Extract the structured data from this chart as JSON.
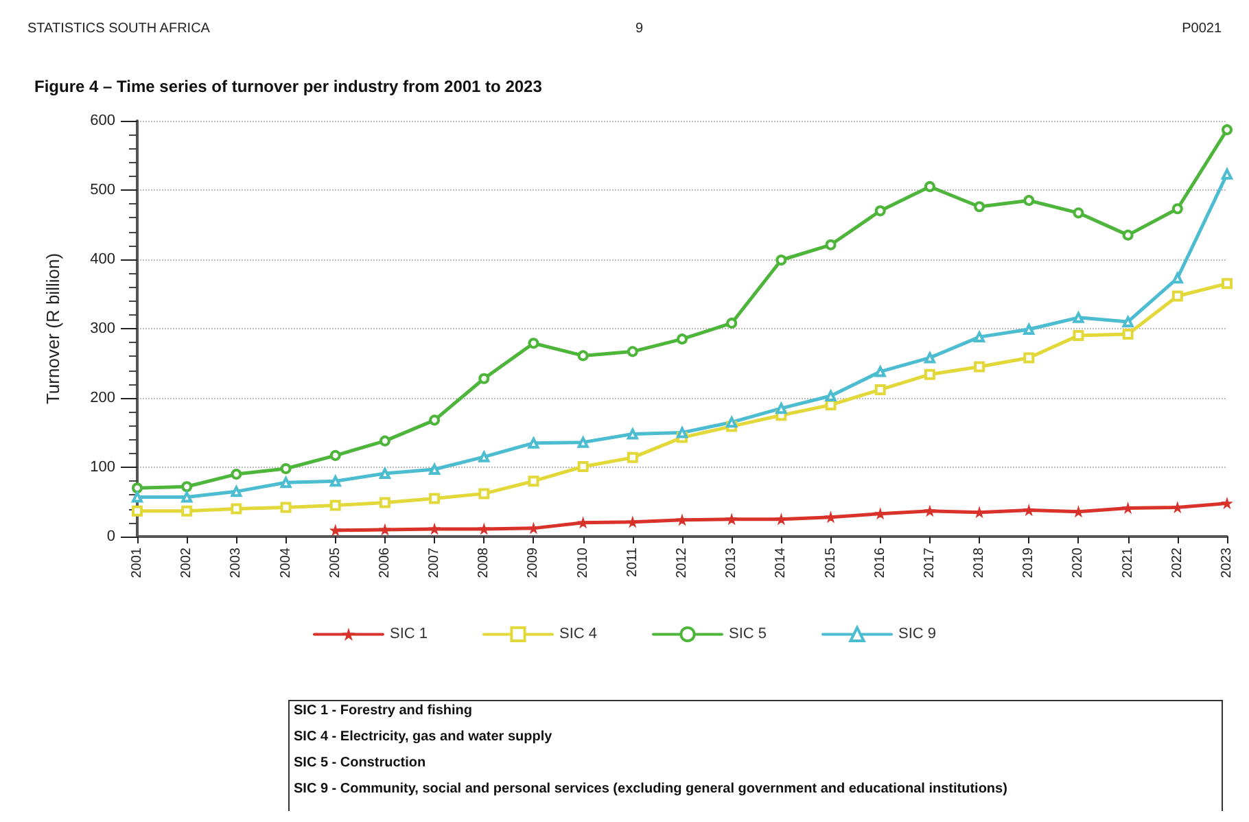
{
  "chart_data": {
    "type": "line",
    "title": "Figure 4 – Time series of turnover per industry from 2001 to 2023",
    "ylabel": "Turnover (R billion)",
    "categories": [
      "2001",
      "2002",
      "2003",
      "2004",
      "2005",
      "2006",
      "2007",
      "2008",
      "2009",
      "2010",
      "2011",
      "2012",
      "2013",
      "2014",
      "2015",
      "2016",
      "2017",
      "2018",
      "2019",
      "2020",
      "2021",
      "2022",
      "2023"
    ],
    "series": [
      {
        "name": "SIC 1",
        "color": "#d8322a",
        "marker": "star",
        "values": [
          null,
          null,
          null,
          null,
          9,
          10,
          11,
          11,
          12,
          20,
          21,
          24,
          25,
          25,
          28,
          33,
          37,
          35,
          38,
          36,
          41,
          42,
          48
        ]
      },
      {
        "name": "SIC 4",
        "color": "#e3d83a",
        "marker": "square",
        "values": [
          37,
          37,
          40,
          42,
          45,
          49,
          55,
          62,
          80,
          101,
          114,
          143,
          159,
          175,
          190,
          212,
          234,
          245,
          258,
          290,
          292,
          347,
          365
        ]
      },
      {
        "name": "SIC 5",
        "color": "#4cb53a",
        "marker": "circle",
        "values": [
          70,
          72,
          90,
          98,
          117,
          138,
          168,
          228,
          279,
          261,
          267,
          285,
          308,
          399,
          421,
          470,
          505,
          476,
          485,
          467,
          435,
          473,
          587
        ]
      },
      {
        "name": "SIC 9",
        "color": "#4cbcd0",
        "marker": "triangle",
        "values": [
          57,
          57,
          65,
          78,
          80,
          91,
          97,
          115,
          135,
          136,
          148,
          150,
          165,
          185,
          203,
          238,
          258,
          288,
          299,
          316,
          310,
          373,
          523
        ]
      }
    ],
    "ylim": [
      0,
      600
    ],
    "yticks": [
      0,
      100,
      200,
      300,
      400,
      500,
      600
    ],
    "grid": "y",
    "legend": "bottom",
    "line_style": "solid",
    "annotations": [
      "STATISTICS SOUTH AFRICA",
      "9",
      "P0021",
      "SIC 1 - Forestry and fishing",
      "SIC 4 - Electricity, gas and water supply",
      "SIC 5 - Construction",
      "SIC 9 - Community, social and personal services (excluding general government and educational institutions)"
    ]
  }
}
